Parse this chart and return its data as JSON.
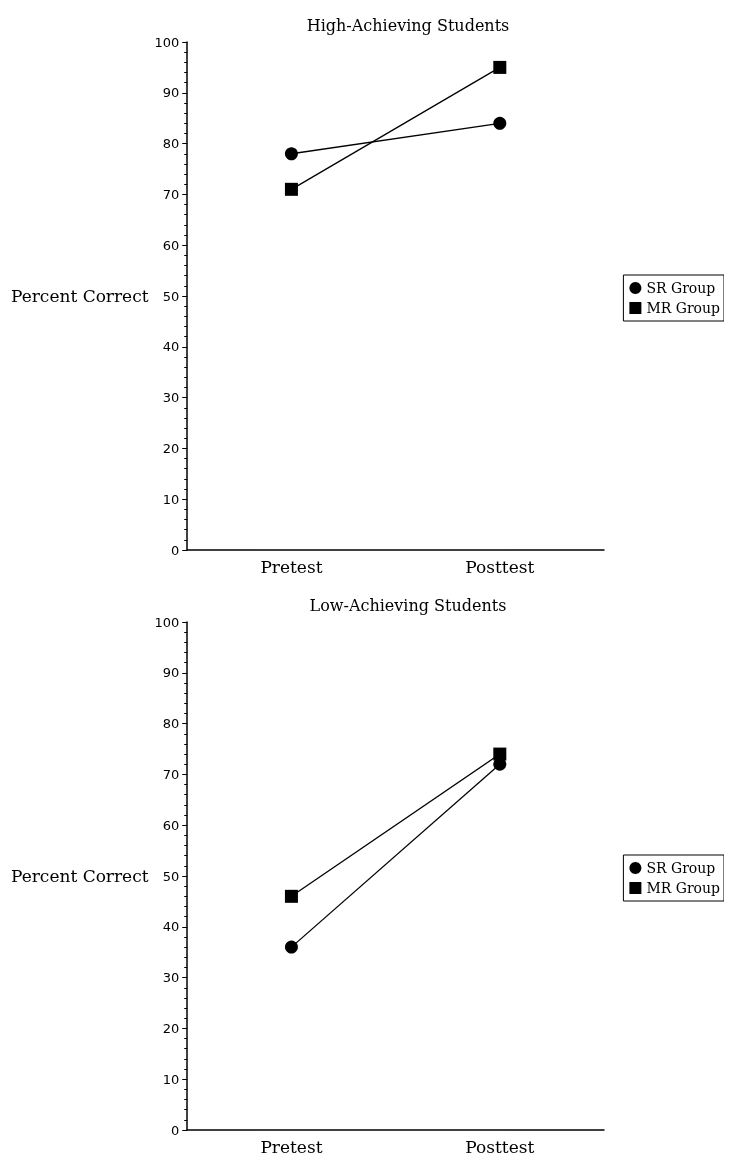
{
  "chart_data": [
    {
      "type": "line",
      "title": "High-Achieving Students",
      "ylabel": "Percent Correct",
      "categories": [
        "Pretest",
        "Posttest"
      ],
      "ylim": [
        0,
        100
      ],
      "yticks": [
        0,
        10,
        20,
        30,
        40,
        50,
        60,
        70,
        80,
        90,
        100
      ],
      "legend": "right",
      "grid": false,
      "line_style": "solid",
      "series": [
        {
          "name": "SR Group",
          "color": "#000000",
          "marker": "circle",
          "values": [
            78,
            84
          ]
        },
        {
          "name": "MR Group",
          "color": "#000000",
          "marker": "square",
          "values": [
            71,
            95
          ]
        }
      ]
    },
    {
      "type": "line",
      "title": "Low-Achieving Students",
      "ylabel": "Percent Correct",
      "categories": [
        "Pretest",
        "Posttest"
      ],
      "ylim": [
        0,
        100
      ],
      "yticks": [
        0,
        10,
        20,
        30,
        40,
        50,
        60,
        70,
        80,
        90,
        100
      ],
      "legend": "right",
      "grid": false,
      "line_style": "solid",
      "series": [
        {
          "name": "SR Group",
          "color": "#000000",
          "marker": "circle",
          "values": [
            36,
            72
          ]
        },
        {
          "name": "MR Group",
          "color": "#000000",
          "marker": "square",
          "values": [
            46,
            74
          ]
        }
      ]
    }
  ]
}
